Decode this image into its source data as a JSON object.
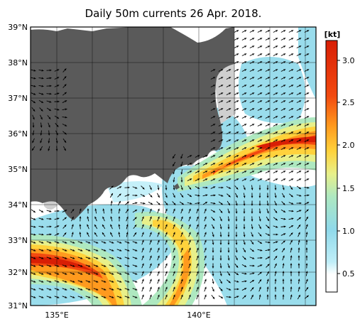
{
  "title": "Daily 50m currents 26 Apr. 2018.",
  "map": {
    "lon_range": [
      134.3,
      142.3
    ],
    "lat_range": [
      31,
      39
    ],
    "lat_ticks": [
      {
        "value": 39,
        "label": "39°N"
      },
      {
        "value": 38,
        "label": "38°N"
      },
      {
        "value": 37,
        "label": "37°N"
      },
      {
        "value": 36,
        "label": "36°N"
      },
      {
        "value": 35,
        "label": "35°N"
      },
      {
        "value": 34,
        "label": "34°N"
      },
      {
        "value": 33,
        "label": "33°N"
      },
      {
        "value": 32,
        "label": "32°N"
      },
      {
        "value": 31,
        "label": "31°N"
      }
    ],
    "lon_ticks": [
      {
        "value": 135,
        "label": "135°E"
      },
      {
        "value": 140,
        "label": "140°E"
      }
    ],
    "colors": {
      "land": "#5a5a5a",
      "shelf": "#cfcfcf",
      "ocean_low": "#ffffff",
      "ocean_mid": "#8fd9ea",
      "arrow": "#000000"
    }
  },
  "colorbar": {
    "unit": "[kt]",
    "range": [
      0.3,
      3.2
    ],
    "ticks": [
      {
        "value": 3.0,
        "label": "3.0"
      },
      {
        "value": 2.5,
        "label": "2.5"
      },
      {
        "value": 2.0,
        "label": "2.0"
      },
      {
        "value": 1.5,
        "label": "1.5"
      },
      {
        "value": 1.0,
        "label": "1.0"
      },
      {
        "value": 0.5,
        "label": "0.5"
      }
    ],
    "colors": [
      "#ffffff",
      "#bfeef8",
      "#8fd9ea",
      "#aee8c0",
      "#e8f08a",
      "#ffd23c",
      "#ff9a1e",
      "#f24a10",
      "#d81e05"
    ]
  }
}
